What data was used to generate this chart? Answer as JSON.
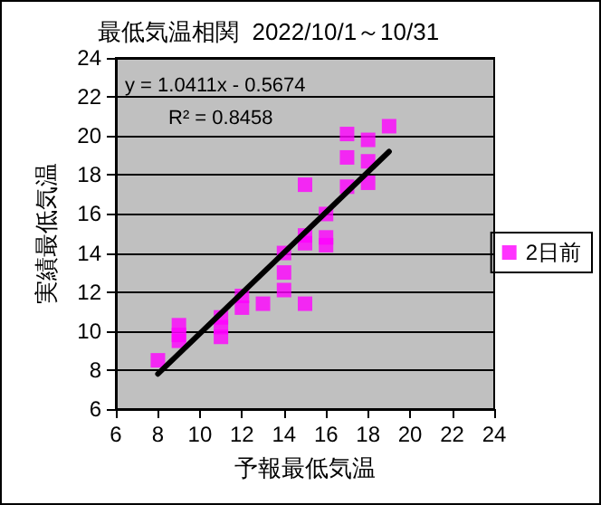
{
  "chart_data": {
    "type": "scatter",
    "title": "最低気温相関  2022/10/1～10/31",
    "xlabel": "予報最低気温",
    "ylabel": "実績最低気温",
    "annotations": [
      "y = 1.0411x - 0.5674",
      "R² = 0.8458"
    ],
    "xlim": [
      6,
      24
    ],
    "xticks": [
      6,
      8,
      10,
      12,
      14,
      16,
      18,
      20,
      22,
      24
    ],
    "ylim": [
      6,
      24
    ],
    "yticks": [
      6,
      8,
      10,
      12,
      14,
      16,
      18,
      20,
      22,
      24
    ],
    "grid": "y",
    "legend": "right",
    "marker": "square",
    "series": [
      {
        "name": "2日前",
        "color": "#ff00ff",
        "x": [
          8,
          9,
          9,
          9,
          11,
          11,
          11,
          12,
          12,
          13,
          14,
          14,
          14,
          15,
          15,
          15,
          15,
          16,
          16,
          16,
          17,
          17,
          17,
          18,
          18,
          18,
          19
        ],
        "values": [
          8.5,
          9.5,
          9.8,
          10.3,
          9.7,
          10.2,
          10.7,
          11.2,
          11.8,
          11.4,
          12.1,
          13.0,
          14.0,
          11.4,
          14.5,
          14.9,
          17.5,
          14.4,
          14.8,
          16.0,
          17.4,
          18.9,
          20.1,
          17.6,
          18.7,
          19.8,
          20.5
        ]
      },
      {
        "type": "line",
        "color": "#000000",
        "x": [
          8,
          19
        ],
        "values": [
          7.8,
          19.2
        ],
        "marker": "none"
      }
    ]
  }
}
